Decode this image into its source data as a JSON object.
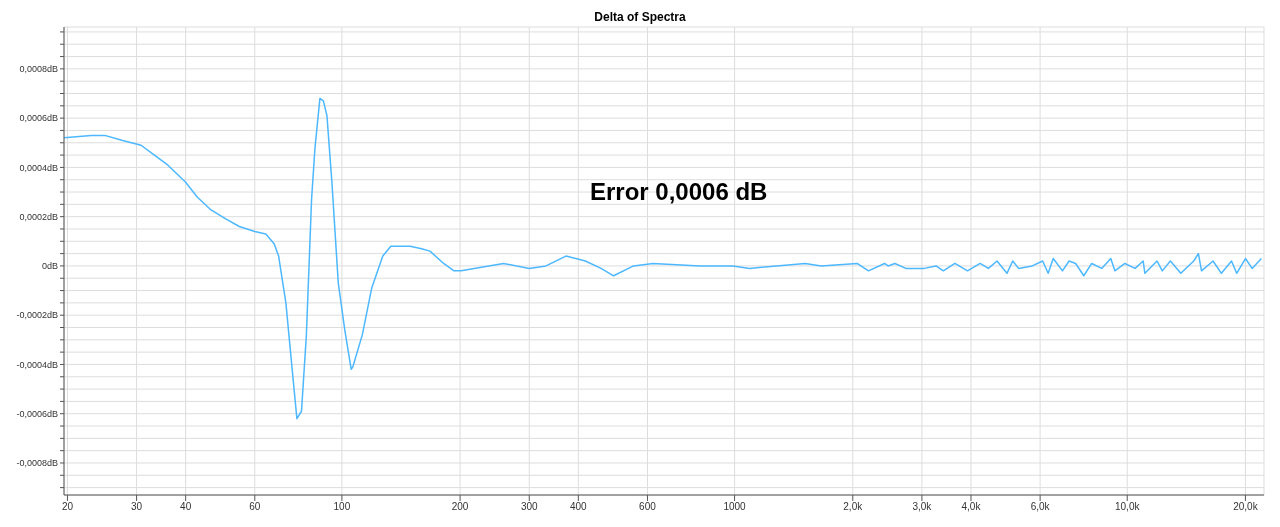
{
  "chart_data": {
    "type": "line",
    "title": "Delta of Spectra",
    "log": "x",
    "grid": true,
    "marker": "none",
    "line_style": "solid",
    "annotations": [
      "Error 0,0006 dB"
    ],
    "xlim": [
      19.6,
      22300
    ],
    "xticks": [
      20,
      30,
      40,
      60,
      100,
      200,
      300,
      400,
      600,
      1000,
      {
        "value": 2000,
        "label": "2,0k"
      },
      {
        "value": 3000,
        "label": "3,0k"
      },
      {
        "value": 4000,
        "label": "4,0k"
      },
      {
        "value": 6000,
        "label": "6,0k"
      },
      {
        "value": 10000,
        "label": "10,0k"
      },
      {
        "value": 20000,
        "label": "20,0k"
      }
    ],
    "ylim": [
      -0.00093,
      0.00097
    ],
    "yticks": [
      {
        "value": -0.0009,
        "label": null
      },
      {
        "value": -0.00085,
        "label": null
      },
      {
        "value": -0.0008,
        "label": "-0,0008dB"
      },
      {
        "value": -0.00075,
        "label": null
      },
      {
        "value": -0.0007,
        "label": null
      },
      {
        "value": -0.00065,
        "label": null
      },
      {
        "value": -0.0006,
        "label": "-0,0006dB"
      },
      {
        "value": -0.00055,
        "label": null
      },
      {
        "value": -0.0005,
        "label": null
      },
      {
        "value": -0.00045,
        "label": null
      },
      {
        "value": -0.0004,
        "label": "-0,0004dB"
      },
      {
        "value": -0.00035,
        "label": null
      },
      {
        "value": -0.0003,
        "label": null
      },
      {
        "value": -0.00025,
        "label": null
      },
      {
        "value": -0.0002,
        "label": "-0,0002dB"
      },
      {
        "value": -0.00015,
        "label": null
      },
      {
        "value": -0.0001,
        "label": null
      },
      {
        "value": -5e-05,
        "label": null
      },
      {
        "value": 0,
        "label": "0dB"
      },
      {
        "value": 5e-05,
        "label": null
      },
      {
        "value": 0.0001,
        "label": null
      },
      {
        "value": 0.00015,
        "label": null
      },
      {
        "value": 0.0002,
        "label": "0,0002dB"
      },
      {
        "value": 0.00025,
        "label": null
      },
      {
        "value": 0.0003,
        "label": null
      },
      {
        "value": 0.00035,
        "label": null
      },
      {
        "value": 0.0004,
        "label": "0,0004dB"
      },
      {
        "value": 0.00045,
        "label": null
      },
      {
        "value": 0.0005,
        "label": null
      },
      {
        "value": 0.00055,
        "label": null
      },
      {
        "value": 0.0006,
        "label": "0,0006dB"
      },
      {
        "value": 0.00065,
        "label": null
      },
      {
        "value": 0.0007,
        "label": null
      },
      {
        "value": 0.00075,
        "label": null
      },
      {
        "value": 0.0008,
        "label": "0,0008dB"
      },
      {
        "value": 0.00085,
        "label": null
      },
      {
        "value": 0.0009,
        "label": null
      },
      {
        "value": 0.00095,
        "label": null
      }
    ],
    "x": [
      19.6,
      23,
      24.9,
      27.5,
      30.8,
      33.3,
      36,
      40,
      42.8,
      46.2,
      50.7,
      54.8,
      60,
      64,
      67.2,
      69,
      72,
      74.6,
      76.8,
      78.9,
      81.2,
      83.7,
      85.4,
      87.9,
      89.7,
      91.6,
      94.3,
      97.9,
      101.7,
      105.6,
      106.6,
      112.7,
      119.1,
      127.1,
      133.2,
      138.3,
      149.2,
      159.6,
      167.6,
      181.6,
      193,
      201,
      258,
      300,
      331,
      372,
      417,
      457,
      492,
      553,
      620,
      816,
      991,
      1092,
      1513,
      1662,
      2052,
      2193,
      2410,
      2460,
      2560,
      2730,
      3040,
      3260,
      3400,
      3640,
      3920,
      4220,
      4430,
      4660,
      4940,
      5110,
      5290,
      5730,
      6090,
      6290,
      6480,
      6840,
      7110,
      7390,
      7750,
      8120,
      8610,
      9080,
      9300,
      9860,
      10470,
      10980,
      11090,
      11910,
      12280,
      12880,
      13690,
      14770,
      15180,
      15460,
      16540,
      17370,
      18430,
      19000,
      20000,
      20800,
      21960
    ],
    "series": [
      {
        "color": "#4db8ff",
        "values": [
          0.00052,
          0.00053,
          0.00053,
          0.00051,
          0.00049,
          0.00045,
          0.00041,
          0.00034,
          0.00028,
          0.00023,
          0.00019,
          0.00016,
          0.00014,
          0.00013,
          9e-05,
          4e-05,
          -0.00015,
          -0.00041,
          -0.00062,
          -0.00059,
          -0.00028,
          0.00027,
          0.00048,
          0.00068,
          0.00067,
          0.00061,
          0.00034,
          -7e-05,
          -0.00026,
          -0.00042,
          -0.00041,
          -0.00028,
          -9e-05,
          4e-05,
          8e-05,
          8e-05,
          8e-05,
          7e-05,
          6e-05,
          1e-05,
          -2e-05,
          -2e-05,
          1e-05,
          -1e-05,
          0,
          4e-05,
          2e-05,
          -1e-05,
          -4e-05,
          0,
          1e-05,
          0,
          0,
          -1e-05,
          1e-05,
          0,
          1e-05,
          -2e-05,
          1e-05,
          0,
          1e-05,
          -1e-05,
          -1e-05,
          0,
          -2e-05,
          1e-05,
          -2e-05,
          1e-05,
          -1e-05,
          2e-05,
          -3e-05,
          2e-05,
          -1e-05,
          0,
          2e-05,
          -3e-05,
          3e-05,
          -2e-05,
          2e-05,
          1e-05,
          -4e-05,
          1e-05,
          -1e-05,
          3e-05,
          -2e-05,
          1e-05,
          -1e-05,
          2e-05,
          -3e-05,
          2e-05,
          -2e-05,
          2e-05,
          -3e-05,
          2e-05,
          5e-05,
          -2e-05,
          2e-05,
          -3e-05,
          2e-05,
          -3e-05,
          3e-05,
          -1e-05,
          3e-05
        ]
      }
    ]
  }
}
